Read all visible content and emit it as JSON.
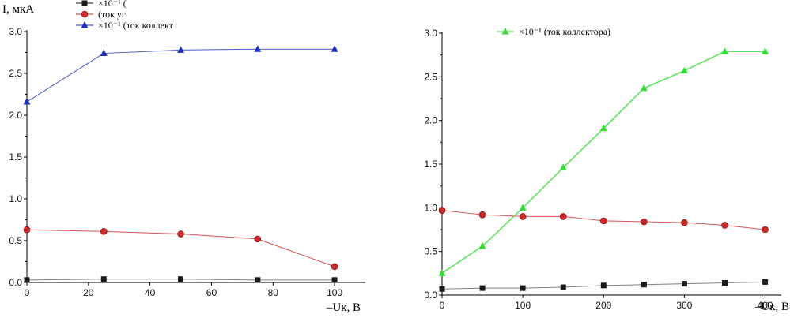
{
  "colors": {
    "black_series": "#1a1a1a",
    "red_series": "#cc2a2a",
    "blue_series": "#1f2fbf",
    "green_series": "#33dd33",
    "axis": "#000000"
  },
  "chart_data": [
    {
      "type": "line",
      "title": "",
      "ylabel": "I,  мкА",
      "xlabel": "–Uк, В",
      "xlim": [
        0,
        110
      ],
      "ylim": [
        0,
        3.0
      ],
      "x_ticks": [
        0,
        20,
        40,
        60,
        80,
        100
      ],
      "y_ticks": [
        0.0,
        0.5,
        1.0,
        1.5,
        2.0,
        2.5,
        3.0
      ],
      "legend": {
        "position": "top-left"
      },
      "series": [
        {
          "name": "×10⁻¹ (",
          "color": "#1a1a1a",
          "marker": "square",
          "x": [
            0,
            25,
            50,
            75,
            100
          ],
          "y": [
            0.03,
            0.04,
            0.04,
            0.03,
            0.03
          ]
        },
        {
          "name": "(ток уг",
          "color": "#cc2a2a",
          "marker": "circle",
          "x": [
            0,
            25,
            50,
            75,
            100
          ],
          "y": [
            0.63,
            0.61,
            0.58,
            0.52,
            0.19
          ]
        },
        {
          "name": "×10⁻¹ (ток коллект",
          "color": "#1f2fbf",
          "marker": "triangle",
          "x": [
            0,
            25,
            50,
            75,
            100
          ],
          "y": [
            2.16,
            2.74,
            2.78,
            2.79,
            2.79
          ]
        }
      ]
    },
    {
      "type": "line",
      "title": "",
      "ylabel": "",
      "xlabel": "–Uк, В",
      "xlim": [
        0,
        420
      ],
      "ylim": [
        0,
        3.0
      ],
      "x_ticks": [
        0,
        100,
        200,
        300,
        400
      ],
      "y_ticks": [
        0.0,
        0.5,
        1.0,
        1.5,
        2.0,
        2.5,
        3.0
      ],
      "legend": {
        "position": "top-center"
      },
      "series": [
        {
          "name": "",
          "color": "#1a1a1a",
          "marker": "square",
          "x": [
            0,
            50,
            100,
            150,
            200,
            250,
            300,
            350,
            400
          ],
          "y": [
            0.07,
            0.08,
            0.08,
            0.09,
            0.11,
            0.12,
            0.13,
            0.14,
            0.15
          ]
        },
        {
          "name": "",
          "color": "#cc2a2a",
          "marker": "circle",
          "x": [
            0,
            50,
            100,
            150,
            200,
            250,
            300,
            350,
            400
          ],
          "y": [
            0.97,
            0.92,
            0.9,
            0.9,
            0.85,
            0.84,
            0.83,
            0.8,
            0.75
          ]
        },
        {
          "name": "×10⁻¹ (ток коллектора)",
          "color": "#33dd33",
          "marker": "triangle",
          "x": [
            0,
            50,
            100,
            150,
            200,
            250,
            300,
            350,
            400
          ],
          "y": [
            0.25,
            0.56,
            1.0,
            1.46,
            1.91,
            2.37,
            2.57,
            2.79,
            2.79
          ]
        }
      ]
    }
  ]
}
